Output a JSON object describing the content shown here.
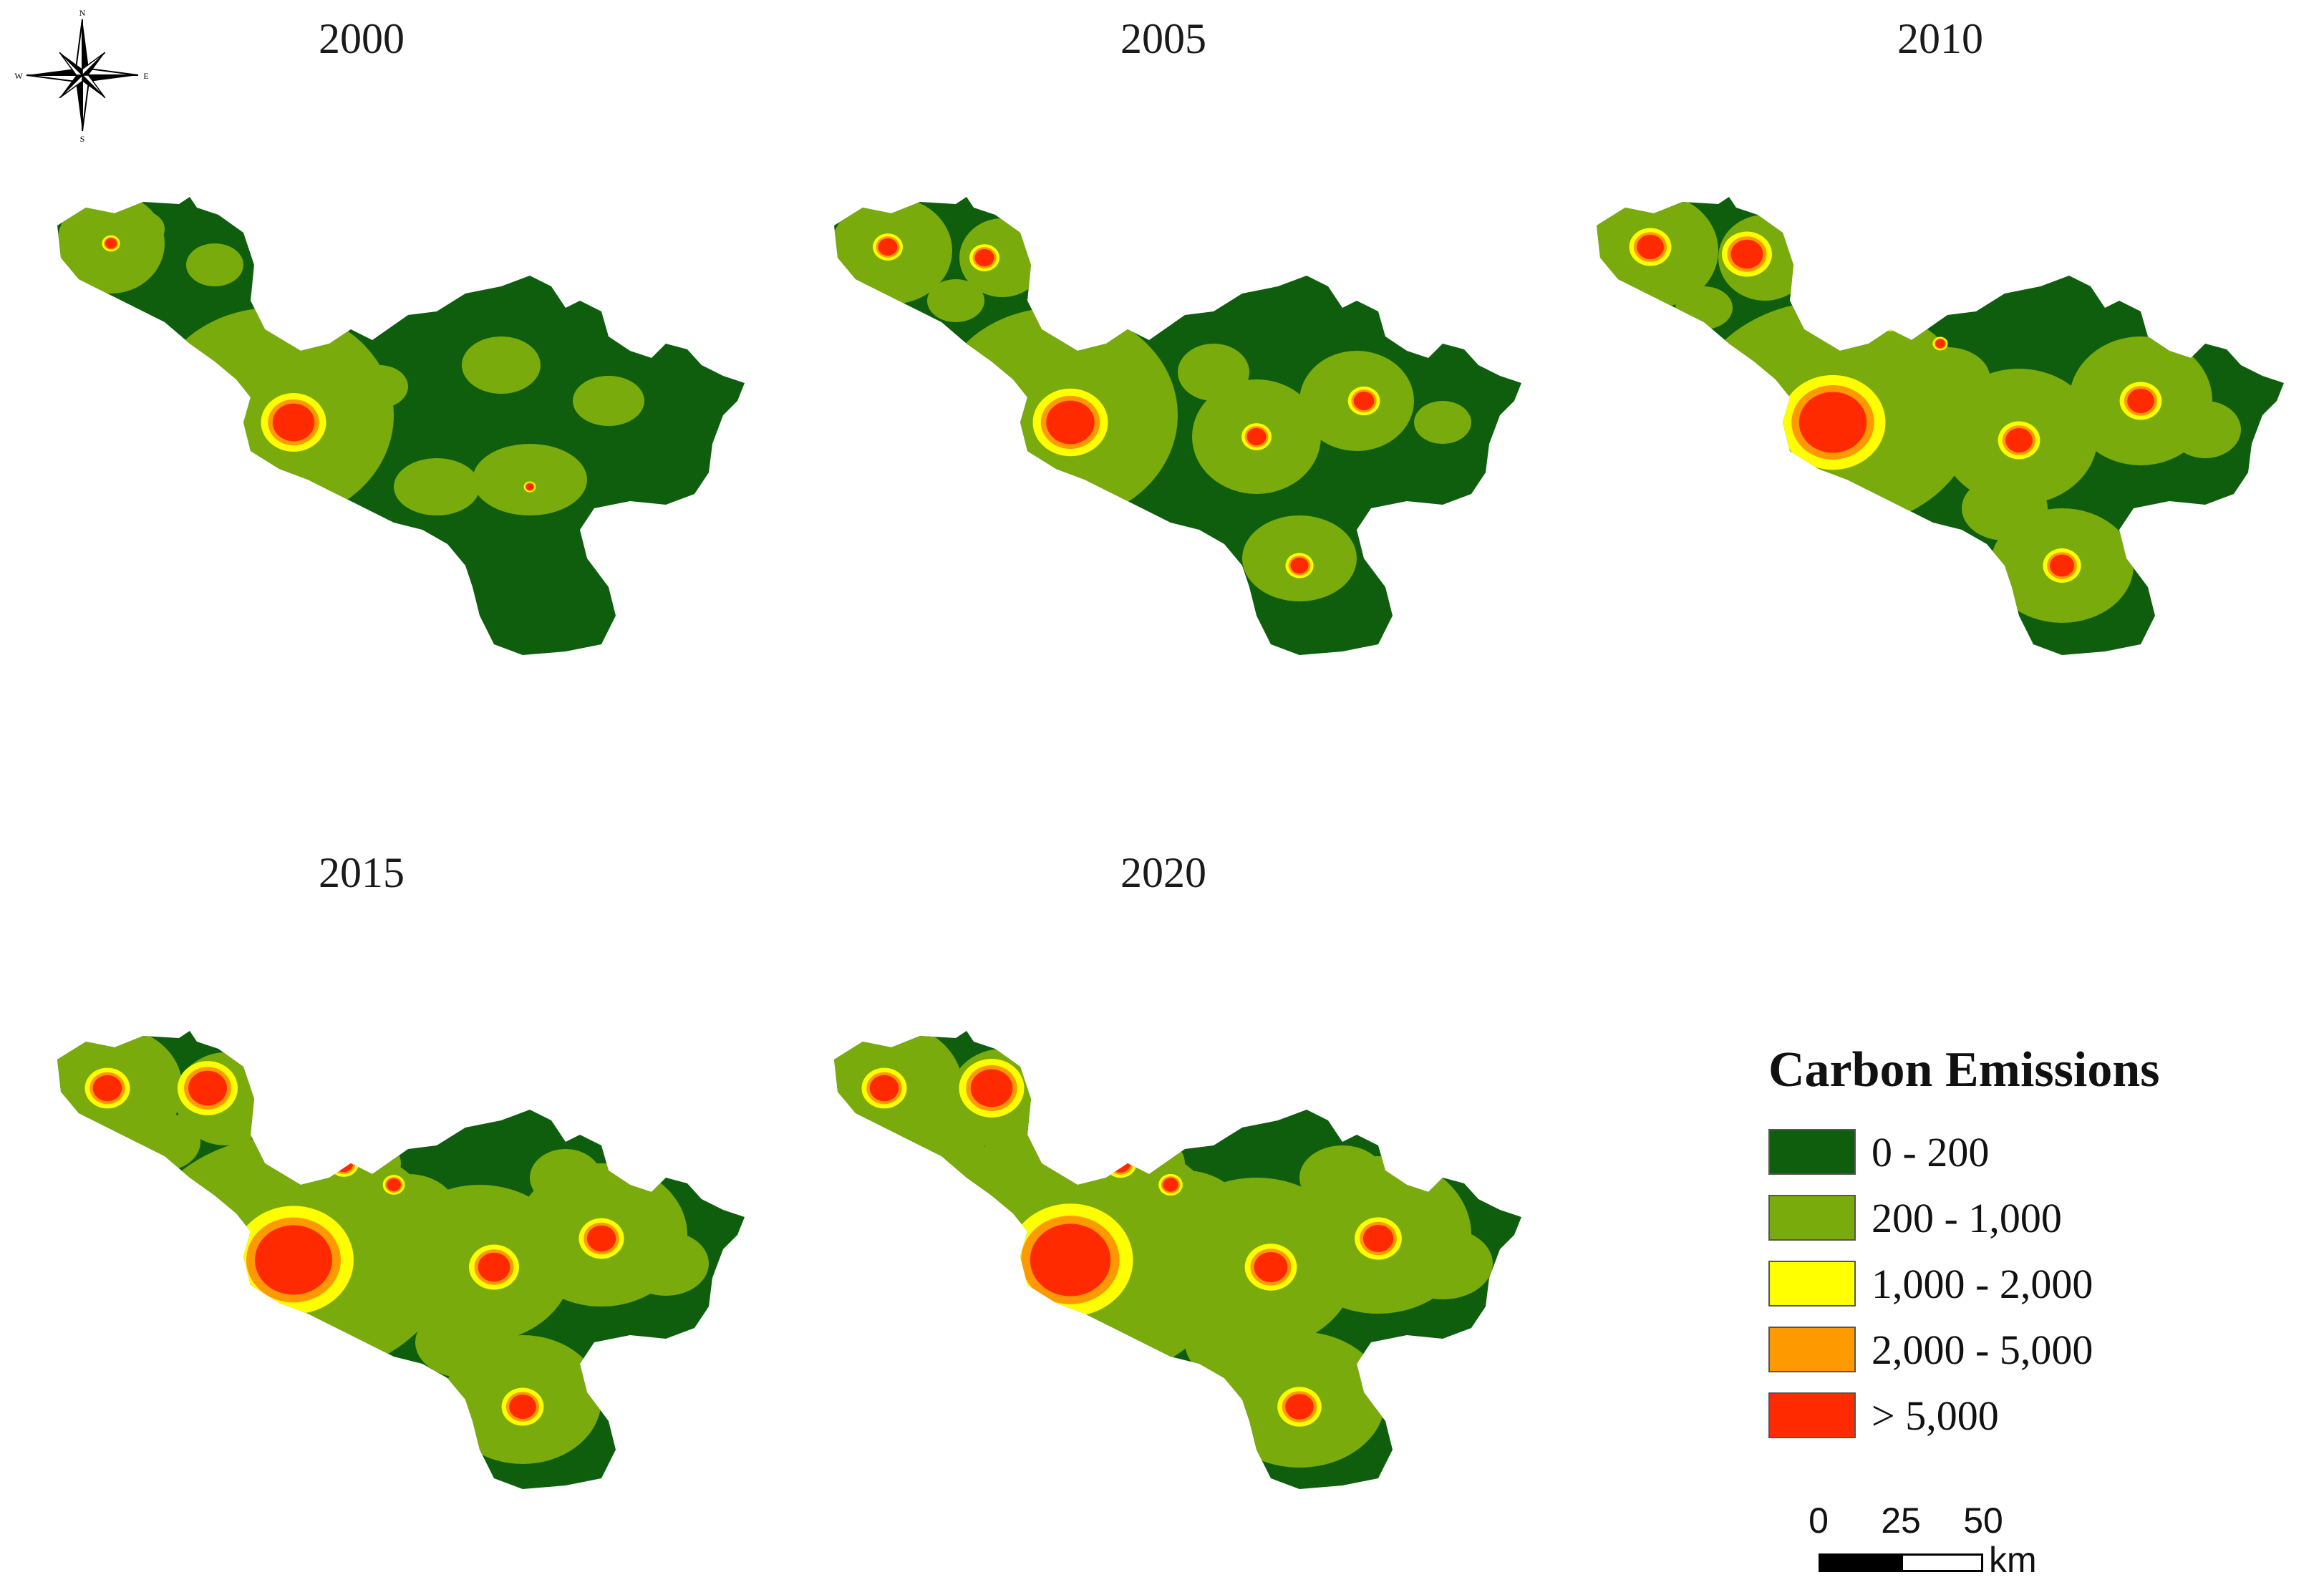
{
  "panels": [
    {
      "year": "2000"
    },
    {
      "year": "2005"
    },
    {
      "year": "2010"
    },
    {
      "year": "2015"
    },
    {
      "year": "2020"
    }
  ],
  "compass": {
    "n": "N",
    "s": "S",
    "e": "E",
    "w": "W"
  },
  "legend": {
    "title": "Carbon Emissions",
    "items": [
      {
        "label": "0 - 200",
        "color": "#0e5e0e"
      },
      {
        "label": "200 - 1,000",
        "color": "#7aab0c"
      },
      {
        "label": "1,000 - 2,000",
        "color": "#ffff00"
      },
      {
        "label": "2,000 - 5,000",
        "color": "#ff9900"
      },
      {
        "label": "> 5,000",
        "color": "#ff2a00"
      }
    ]
  },
  "scalebar": {
    "ticks": [
      "0",
      "25",
      "50"
    ],
    "unit": "km"
  },
  "colors": {
    "dark_green": "#0e5e0e",
    "light_green": "#7aab0c",
    "yellow": "#ffff00",
    "orange": "#ff9900",
    "red": "#ff2a00"
  }
}
